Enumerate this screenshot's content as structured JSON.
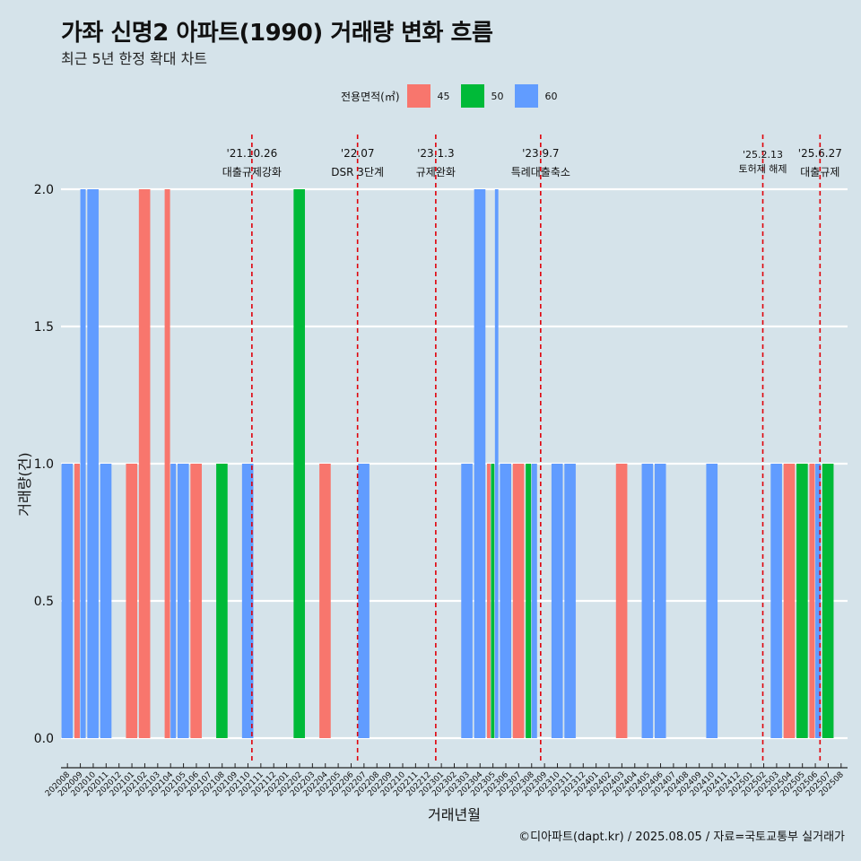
{
  "title": "가좌 신명2 아파트(1990) 거래량 변화 흐름",
  "subtitle": "최근 5년 한정 확대 차트",
  "legend": {
    "title": "전용면적(㎡)",
    "items": [
      {
        "label": "45",
        "color": "#F8766D"
      },
      {
        "label": "50",
        "color": "#00BA38"
      },
      {
        "label": "60",
        "color": "#619CFF"
      }
    ]
  },
  "caption": "©디아파트(dapt.kr) / 2025.08.05 / 자료=국토교통부 실거래가",
  "chart_data": {
    "type": "bar",
    "xlabel": "거래년월",
    "ylabel": "거래량(건)",
    "ylim": [
      0,
      2
    ],
    "yticks": [
      0.0,
      0.5,
      1.0,
      1.5,
      2.0
    ],
    "ytick_labels": [
      "0.0",
      "0.5",
      "1.0",
      "1.5",
      "2.0"
    ],
    "categories": [
      "202008",
      "202009",
      "202010",
      "202011",
      "202012",
      "202101",
      "202102",
      "202103",
      "202104",
      "202105",
      "202106",
      "202107",
      "202108",
      "202109",
      "202110",
      "202111",
      "202112",
      "202201",
      "202202",
      "202203",
      "202204",
      "202205",
      "202206",
      "202207",
      "202208",
      "202209",
      "202210",
      "202211",
      "202212",
      "202301",
      "202302",
      "202303",
      "202304",
      "202305",
      "202306",
      "202307",
      "202308",
      "202309",
      "202310",
      "202311",
      "202312",
      "202401",
      "202402",
      "202403",
      "202404",
      "202405",
      "202406",
      "202407",
      "202408",
      "202409",
      "202410",
      "202411",
      "202412",
      "202501",
      "202502",
      "202503",
      "202504",
      "202505",
      "202506",
      "202507",
      "202508"
    ],
    "series": [
      {
        "name": "45",
        "color": "#F8766D",
        "points": [
          {
            "x": "202009",
            "y": 1
          },
          {
            "x": "202101",
            "y": 1
          },
          {
            "x": "202102",
            "y": 2
          },
          {
            "x": "202104",
            "y": 2
          },
          {
            "x": "202106",
            "y": 1
          },
          {
            "x": "202204",
            "y": 1
          },
          {
            "x": "202305",
            "y": 1
          },
          {
            "x": "202307",
            "y": 1
          },
          {
            "x": "202403",
            "y": 1
          },
          {
            "x": "202504",
            "y": 1
          },
          {
            "x": "202506",
            "y": 1
          }
        ]
      },
      {
        "name": "50",
        "color": "#00BA38",
        "points": [
          {
            "x": "202108",
            "y": 1
          },
          {
            "x": "202202",
            "y": 2
          },
          {
            "x": "202305",
            "y": 1
          },
          {
            "x": "202308",
            "y": 1
          },
          {
            "x": "202505",
            "y": 1
          },
          {
            "x": "202507",
            "y": 1
          }
        ]
      },
      {
        "name": "60",
        "color": "#619CFF",
        "points": [
          {
            "x": "202008",
            "y": 1
          },
          {
            "x": "202009",
            "y": 2
          },
          {
            "x": "202010",
            "y": 2
          },
          {
            "x": "202011",
            "y": 1
          },
          {
            "x": "202104",
            "y": 1
          },
          {
            "x": "202105",
            "y": 1
          },
          {
            "x": "202110",
            "y": 1
          },
          {
            "x": "202207",
            "y": 1
          },
          {
            "x": "202303",
            "y": 1
          },
          {
            "x": "202304",
            "y": 2
          },
          {
            "x": "202305",
            "y": 2
          },
          {
            "x": "202306",
            "y": 1
          },
          {
            "x": "202308",
            "y": 1
          },
          {
            "x": "202310",
            "y": 1
          },
          {
            "x": "202311",
            "y": 1
          },
          {
            "x": "202405",
            "y": 1
          },
          {
            "x": "202406",
            "y": 1
          },
          {
            "x": "202410",
            "y": 1
          },
          {
            "x": "202503",
            "y": 1
          },
          {
            "x": "202506",
            "y": 1
          }
        ]
      }
    ],
    "events": [
      {
        "date": "2021-10-26",
        "label_date": "'21.10.26",
        "label": "대출규제강화"
      },
      {
        "date": "2022-07-01",
        "label_date": "'22.07",
        "label": "DSR 3단계"
      },
      {
        "date": "2023-01-03",
        "label_date": "'23.1.3",
        "label": "규제완화"
      },
      {
        "date": "2023-09-07",
        "label_date": "'23.9.7",
        "label": "특례대출축소"
      },
      {
        "date": "2025-02-13",
        "label_date": "'25.2.13",
        "label": "토허제 해제"
      },
      {
        "date": "2025-06-27",
        "label_date": "'25.6.27",
        "label": "대출규제"
      }
    ],
    "grid": "horizontal"
  }
}
